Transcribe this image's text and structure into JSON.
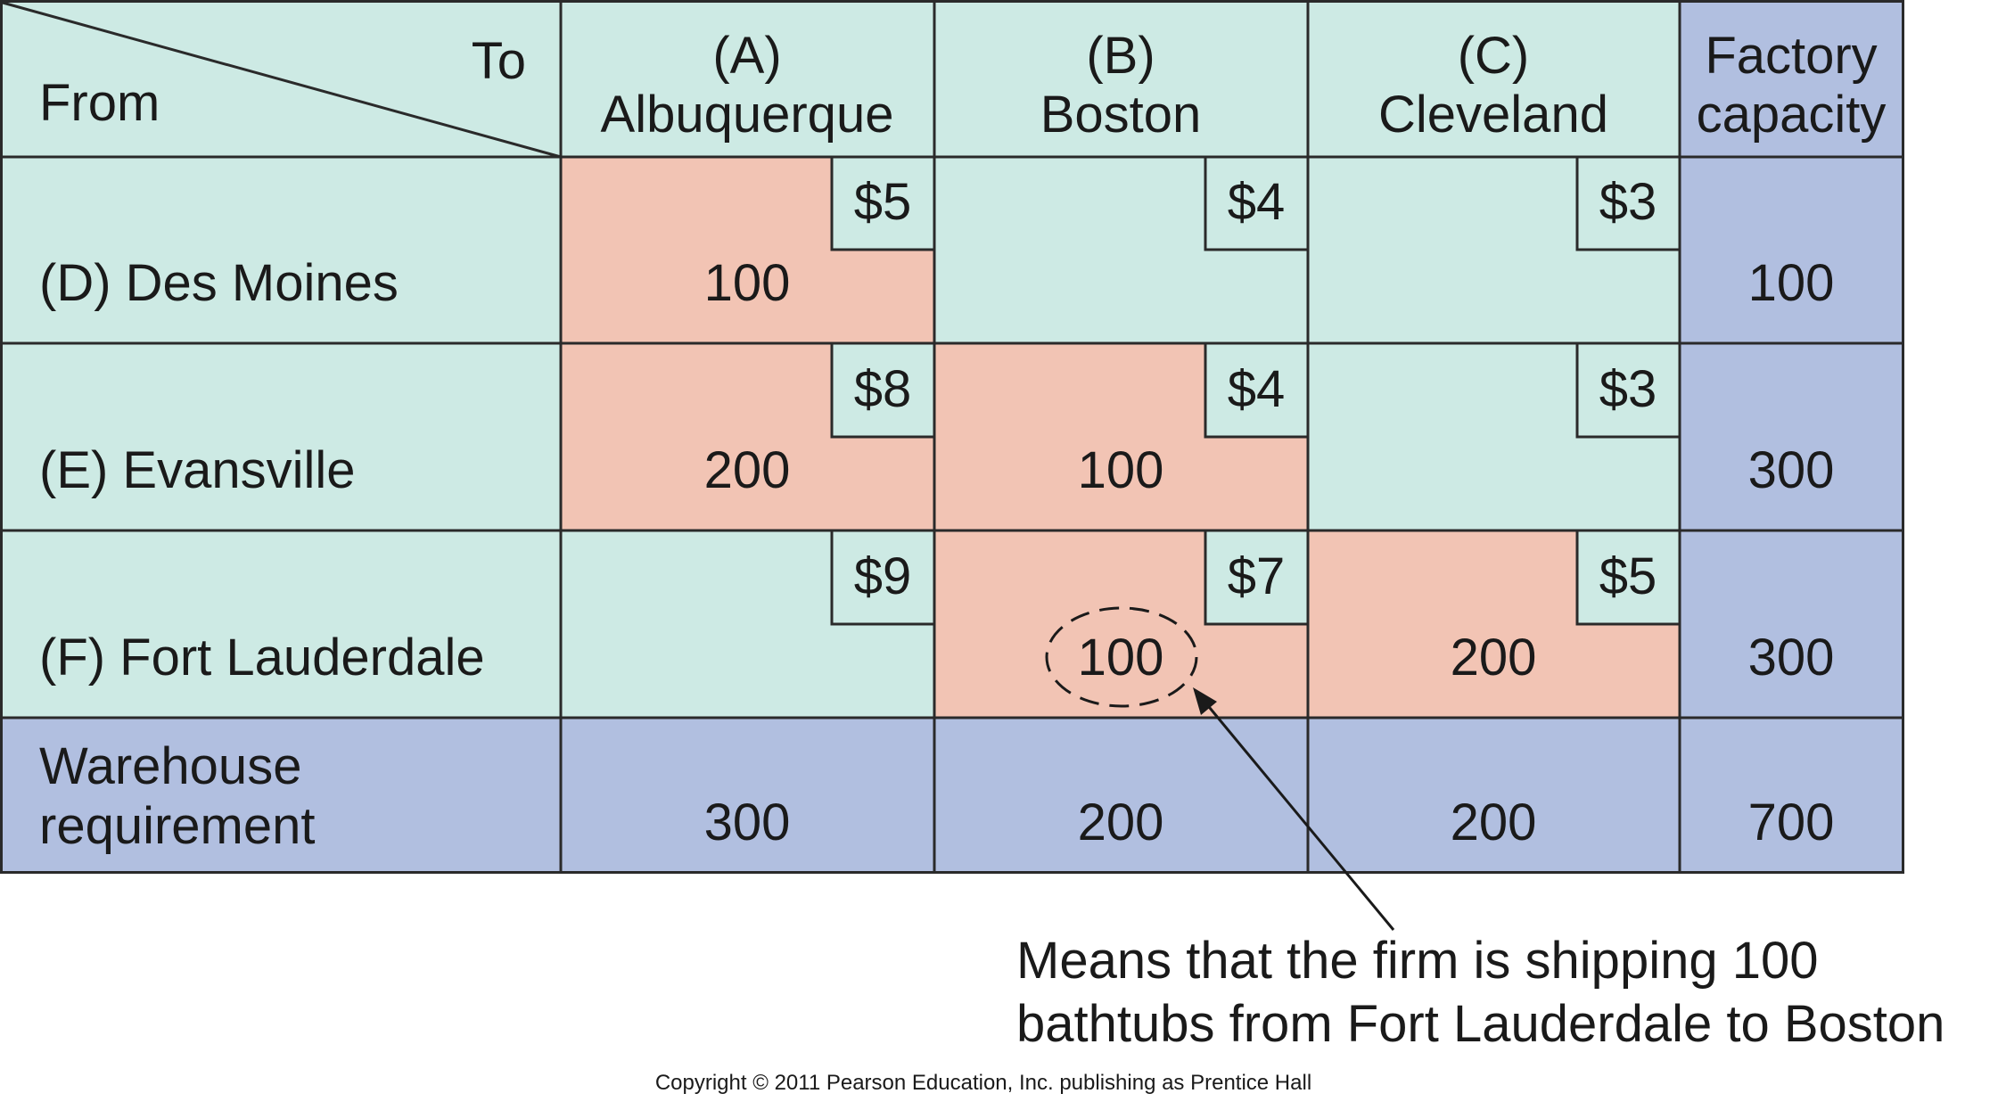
{
  "colors": {
    "teal": "#cdeae4",
    "salmon": "#f2c4b4",
    "blue": "#b1bfe0",
    "grid": "#2a2a2a"
  },
  "header": {
    "to_label": "To",
    "from_label": "From",
    "destinations": [
      {
        "code": "(A)",
        "name": "Albuquerque"
      },
      {
        "code": "(B)",
        "name": "Boston"
      },
      {
        "code": "(C)",
        "name": "Cleveland"
      }
    ],
    "capacity_line1": "Factory",
    "capacity_line2": "capacity"
  },
  "rows": [
    {
      "label": "(D) Des Moines",
      "cells": [
        {
          "cost": "$5",
          "qty": "100",
          "used": true
        },
        {
          "cost": "$4",
          "qty": "",
          "used": false
        },
        {
          "cost": "$3",
          "qty": "",
          "used": false
        }
      ],
      "capacity": "100"
    },
    {
      "label": "(E) Evansville",
      "cells": [
        {
          "cost": "$8",
          "qty": "200",
          "used": true
        },
        {
          "cost": "$4",
          "qty": "100",
          "used": true
        },
        {
          "cost": "$3",
          "qty": "",
          "used": false
        }
      ],
      "capacity": "300"
    },
    {
      "label": "(F) Fort Lauderdale",
      "cells": [
        {
          "cost": "$9",
          "qty": "",
          "used": false
        },
        {
          "cost": "$7",
          "qty": "100",
          "used": true
        },
        {
          "cost": "$5",
          "qty": "200",
          "used": true
        }
      ],
      "capacity": "300"
    }
  ],
  "requirement": {
    "label_line1": "Warehouse",
    "label_line2": "requirement",
    "values": [
      "300",
      "200",
      "200"
    ],
    "total": "700"
  },
  "annotation": {
    "line1": "Means that the firm is shipping 100",
    "line2": "bathtubs from Fort Lauderdale to Boston"
  },
  "copyright": "Copyright © 2011 Pearson Education, Inc. publishing as Prentice Hall"
}
